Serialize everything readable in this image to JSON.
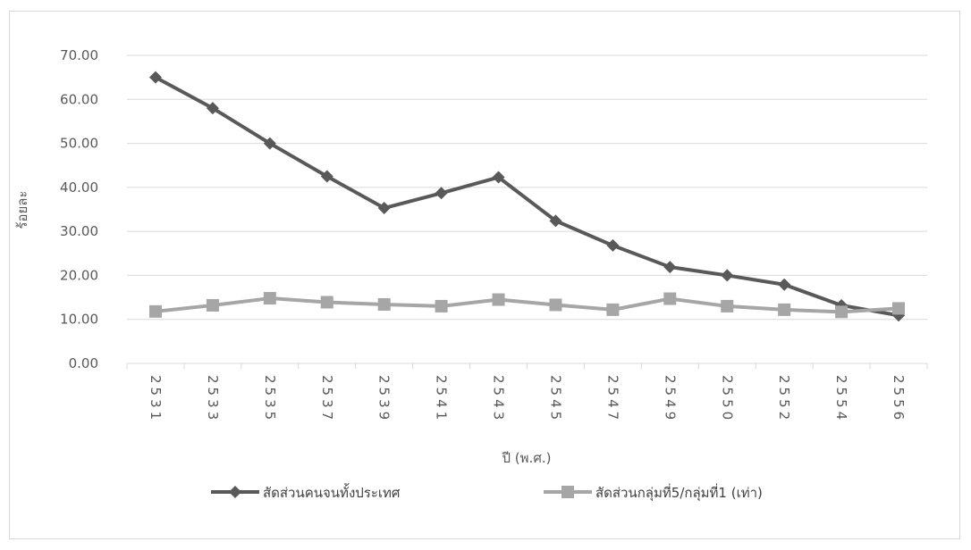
{
  "chart_data": {
    "type": "line",
    "xlabel": "ปี (พ.ศ.)",
    "ylabel": "ร้อยละ",
    "ylim": [
      0,
      70
    ],
    "yticks": [
      "0.00",
      "10.00",
      "20.00",
      "30.00",
      "40.00",
      "50.00",
      "60.00",
      "70.00"
    ],
    "categories": [
      "2531",
      "2533",
      "2535",
      "2537",
      "2539",
      "2541",
      "2543",
      "2545",
      "2547",
      "2549",
      "2550",
      "2552",
      "2554",
      "2556"
    ],
    "grid": "horizontal",
    "legend_position": "bottom",
    "series": [
      {
        "name": "สัดส่วนคนจนทั้งประเทศ",
        "color": "#595959",
        "marker": "diamond",
        "values": [
          65.0,
          58.0,
          50.0,
          42.5,
          35.3,
          38.7,
          42.3,
          32.4,
          26.8,
          21.9,
          20.0,
          17.9,
          13.2,
          10.9
        ]
      },
      {
        "name": "สัดส่วนกลุ่มที่5/กลุ่มที่1 (เท่า)",
        "color": "#a6a6a6",
        "marker": "square",
        "values": [
          11.8,
          13.2,
          14.8,
          13.9,
          13.4,
          13.0,
          14.5,
          13.3,
          12.2,
          14.7,
          13.0,
          12.2,
          11.7,
          12.5
        ]
      }
    ]
  }
}
